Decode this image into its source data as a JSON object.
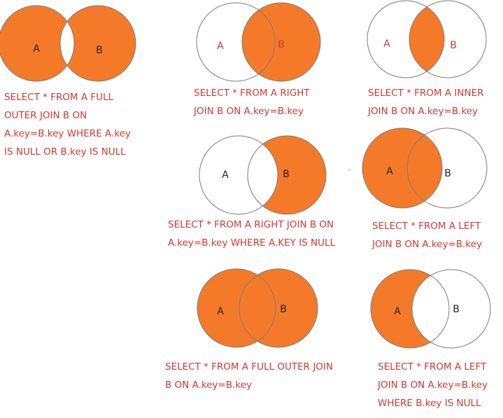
{
  "colors": {
    "fill": "#f47a2a",
    "stroke": "#7a7a7a",
    "caption_text": "#d03a30",
    "label_dark": "#222222",
    "label_red": "#d03a30"
  },
  "diagrams": [
    {
      "label_a": "A",
      "label_b": "B",
      "fill": "a_only_and_b_only",
      "label_a_color": "label_dark",
      "label_b_color": "label_dark",
      "caption": "SELECT * FROM A FULL\nOUTER JOIN B ON\nA.key=B.key WHERE A.key\nIS NULL OR B.key IS NULL"
    },
    {
      "label_a": "A",
      "label_b": "B",
      "fill": "b_all",
      "label_a_color": "label_red",
      "label_b_color": "label_red",
      "caption": "SELECT * FROM A RIGHT\nJOIN B ON A.key=B.key"
    },
    {
      "label_a": "A",
      "label_b": "B",
      "fill": "intersection",
      "label_a_color": "label_red",
      "label_b_color": "label_red",
      "caption": "SELECT * FROM A INNER\nJOIN B ON A.key=B.key"
    },
    {
      "label_a": "A",
      "label_b": "B",
      "fill": "b_only",
      "label_a_color": "label_dark",
      "label_b_color": "label_dark",
      "caption": "SELECT * FROM A RIGHT JOIN B ON\nA.key=B.key WHERE A.KEY IS NULL"
    },
    {
      "label_a": "A",
      "label_b": "B",
      "fill": "a_all",
      "label_a_color": "label_dark",
      "label_b_color": "label_dark",
      "caption": "SELECT * FROM A LEFT\nJOIN B ON A.key=B.key"
    },
    {
      "label_a": "A",
      "label_b": "B",
      "fill": "union",
      "label_a_color": "label_dark",
      "label_b_color": "label_dark",
      "caption": "SELECT * FROM A FULL OUTER JOIN\nB ON A.key=B.key"
    },
    {
      "label_a": "A",
      "label_b": "B",
      "fill": "a_only",
      "label_a_color": "label_dark",
      "label_b_color": "label_dark",
      "caption": "SELECT * FROM A LEFT\nJOIN B ON A.key=B.key\nWHERE B.key IS NULL"
    }
  ]
}
